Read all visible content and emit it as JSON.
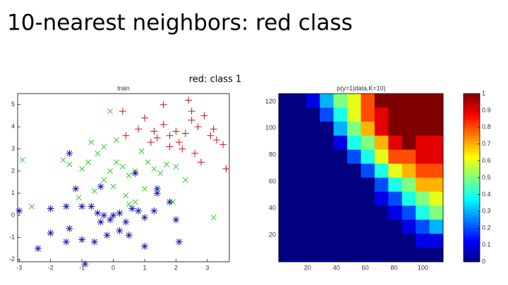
{
  "title": "10-nearest neighbors: red class",
  "subtitle": "red: class 1",
  "chart_data": [
    {
      "type": "scatter",
      "title": "train",
      "xlim": [
        -3.05,
        3.7
      ],
      "ylim": [
        -2.1,
        5.5
      ],
      "xticks": [
        -3,
        -2,
        -1,
        0,
        1,
        2,
        3
      ],
      "yticks": [
        -2,
        -1,
        0,
        1,
        2,
        3,
        4,
        5
      ],
      "grid": false,
      "series": [
        {
          "color": "#cc1111",
          "marker": "+",
          "x": [
            0.3,
            1.0,
            0.8,
            1.3,
            1.4,
            1.8,
            2.0,
            2.1,
            2.3,
            2.5,
            2.7,
            2.9,
            3.1,
            3.3,
            3.5,
            3.6,
            2.8,
            2.6,
            2.2,
            1.8,
            1.2,
            0.4,
            1.6,
            2.4,
            1.6,
            2.5,
            3.2
          ],
          "values": [
            4.7,
            4.4,
            3.9,
            3.8,
            3.5,
            3.6,
            3.8,
            3.3,
            3.7,
            4.3,
            4.0,
            4.5,
            3.6,
            3.4,
            3.2,
            2.1,
            2.4,
            2.8,
            3.0,
            3.1,
            3.3,
            3.6,
            4.1,
            5.2,
            5.0,
            4.7,
            3.9
          ]
        },
        {
          "color": "#33cc33",
          "marker": "x",
          "x": [
            -2.9,
            -1.6,
            -1.4,
            -1.0,
            -0.8,
            -0.5,
            -0.3,
            -0.1,
            0.1,
            0.3,
            0.5,
            0.7,
            0.9,
            1.1,
            1.3,
            1.5,
            1.7,
            2.0,
            2.3,
            0.0,
            -0.3,
            -0.6,
            0.4,
            0.7,
            1.0,
            -0.1,
            0.1,
            -0.7,
            -2.6,
            -1.1,
            3.2,
            1.9,
            0.5
          ],
          "values": [
            2.5,
            2.5,
            2.3,
            2.1,
            2.4,
            2.8,
            3.1,
            2.0,
            2.4,
            2.2,
            1.8,
            2.0,
            2.9,
            2.4,
            2.1,
            1.9,
            2.3,
            2.2,
            1.6,
            1.3,
            1.6,
            1.1,
            0.9,
            0.6,
            1.2,
            4.7,
            3.4,
            3.3,
            0.4,
            0.8,
            -0.1,
            0.6,
            0.5
          ]
        },
        {
          "color": "#1a1aaa",
          "marker": "*",
          "x": [
            -3.0,
            -2.0,
            -1.5,
            -1.2,
            -1.0,
            -0.7,
            -0.5,
            -0.3,
            -0.1,
            0.0,
            0.2,
            0.4,
            0.6,
            0.8,
            1.0,
            1.3,
            1.8,
            2.0,
            2.1,
            1.4,
            0.7,
            -0.4,
            -2.4,
            -2.0,
            -1.4,
            -1.0,
            -0.6,
            -0.2,
            0.2,
            0.5,
            1.0,
            -0.9,
            -1.5,
            -0.4,
            -1.4,
            1.4
          ],
          "values": [
            0.2,
            0.3,
            0.4,
            1.2,
            0.4,
            0.4,
            0.1,
            0.0,
            -0.2,
            0.0,
            0.1,
            -0.3,
            0.3,
            0.2,
            -0.1,
            0.2,
            0.6,
            -0.2,
            -1.2,
            1.2,
            1.9,
            1.3,
            -1.5,
            -0.8,
            -0.6,
            -1.1,
            -1.2,
            -0.9,
            -0.7,
            -0.9,
            -1.4,
            -2.2,
            -1.2,
            -0.3,
            2.8,
            1.0
          ]
        }
      ]
    },
    {
      "type": "heatmap",
      "title": "p(y=1|data,K=10)",
      "colormap": "jet",
      "xlim": [
        0,
        114
      ],
      "ylim": [
        0,
        126
      ],
      "xticks": [
        20,
        40,
        60,
        80,
        100
      ],
      "yticks": [
        20,
        40,
        60,
        80,
        100,
        120
      ],
      "clim": [
        0,
        1
      ],
      "cticks": [
        0,
        0.1,
        0.2,
        0.3,
        0.4,
        0.5,
        0.6,
        0.7,
        0.8,
        0.9,
        1
      ],
      "z": [
        [
          0,
          0,
          0.1,
          0.3,
          0.5,
          0.6,
          0.8,
          1,
          1,
          1,
          1,
          1
        ],
        [
          0,
          0,
          0,
          0.2,
          0.4,
          0.6,
          0.8,
          0.9,
          1,
          1,
          1,
          1
        ],
        [
          0,
          0,
          0,
          0,
          0.3,
          0.5,
          0.7,
          0.9,
          1,
          1,
          1,
          1
        ],
        [
          0,
          0,
          0,
          0,
          0.1,
          0.4,
          0.5,
          0.7,
          0.9,
          1,
          0.9,
          0.9
        ],
        [
          0,
          0,
          0,
          0,
          0,
          0.2,
          0.4,
          0.6,
          0.8,
          0.8,
          0.9,
          0.9
        ],
        [
          0,
          0,
          0,
          0,
          0,
          0,
          0.2,
          0.4,
          0.6,
          0.7,
          0.8,
          0.8
        ],
        [
          0,
          0,
          0,
          0,
          0,
          0,
          0,
          0.2,
          0.4,
          0.5,
          0.7,
          0.7
        ],
        [
          0,
          0,
          0,
          0,
          0,
          0,
          0,
          0.1,
          0.2,
          0.4,
          0.5,
          0.6
        ],
        [
          0,
          0,
          0,
          0,
          0,
          0,
          0,
          0,
          0.1,
          0.2,
          0.4,
          0.5
        ],
        [
          0,
          0,
          0,
          0,
          0,
          0,
          0,
          0,
          0,
          0.1,
          0.2,
          0.3
        ],
        [
          0,
          0,
          0,
          0,
          0,
          0,
          0,
          0,
          0,
          0,
          0.1,
          0.1
        ],
        [
          0,
          0,
          0,
          0,
          0,
          0,
          0,
          0,
          0,
          0,
          0,
          0
        ]
      ]
    }
  ]
}
